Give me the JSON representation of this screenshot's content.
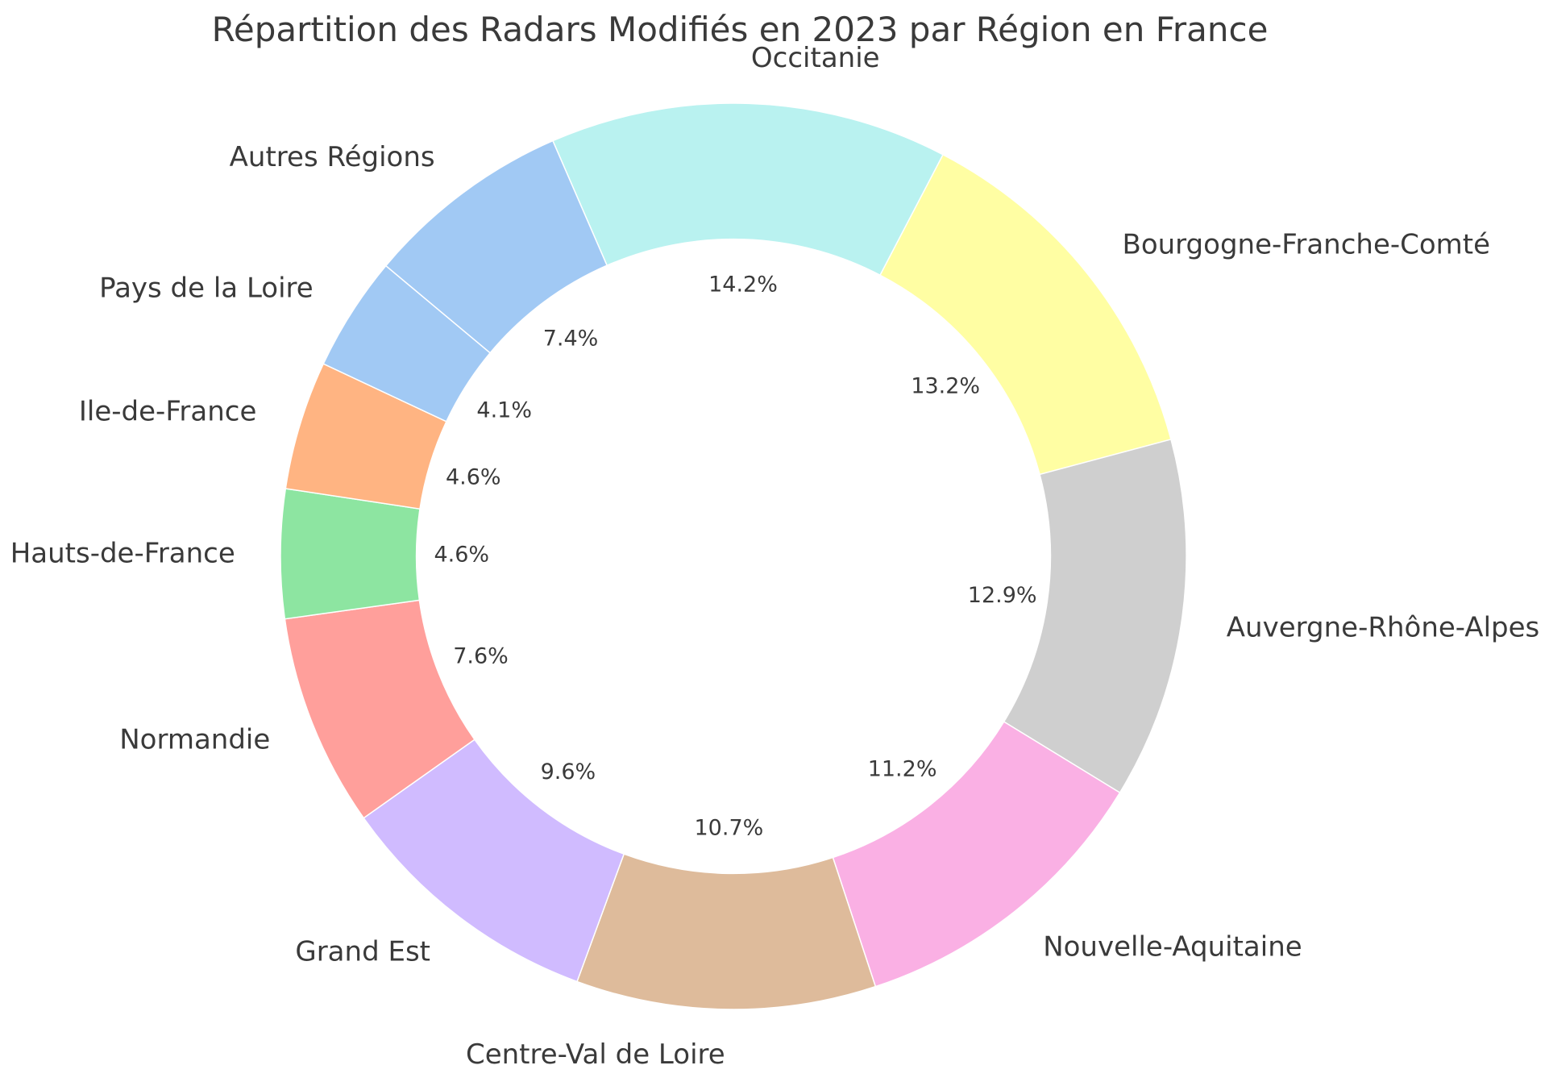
{
  "title": "Répartition des Radars Modifiés en 2023 par Région en France",
  "chart_data": {
    "type": "pie",
    "subtype": "donut",
    "title": "Répartition des Radars Modifiés en 2023 par Région en France",
    "labels": [
      "Occitanie",
      "Bourgogne-Franche-Comté",
      "Auvergne-Rhône-Alpes",
      "Nouvelle-Aquitaine",
      "Centre-Val de Loire",
      "Grand Est",
      "Normandie",
      "Hauts-de-France",
      "Ile-de-France",
      "Pays de la Loire",
      "Autres Régions"
    ],
    "values": [
      14.2,
      13.2,
      12.9,
      11.2,
      10.7,
      9.6,
      7.6,
      4.6,
      4.6,
      4.1,
      7.4
    ],
    "pct_labels": [
      "14.2%",
      "13.2%",
      "12.9%",
      "11.2%",
      "10.7%",
      "9.6%",
      "7.6%",
      "4.6%",
      "4.6%",
      "4.1%",
      "7.4%"
    ],
    "colors": [
      "#b9f2f0",
      "#fffea3",
      "#cfcfcf",
      "#fab0e4",
      "#debb9b",
      "#d0bbff",
      "#ff9f9b",
      "#8de5a1",
      "#ffb482",
      "#a1c9f4",
      "#a1c9f4"
    ],
    "start_angle_deg_from_top": -23.5,
    "direction": "clockwise",
    "inner_radius_ratio": 0.7,
    "pct_distance_ratio": 0.6,
    "label_distance_ratio": 1.1,
    "legend": "none",
    "background_color": "#ffffff",
    "text_color": "#3a3a3a"
  }
}
